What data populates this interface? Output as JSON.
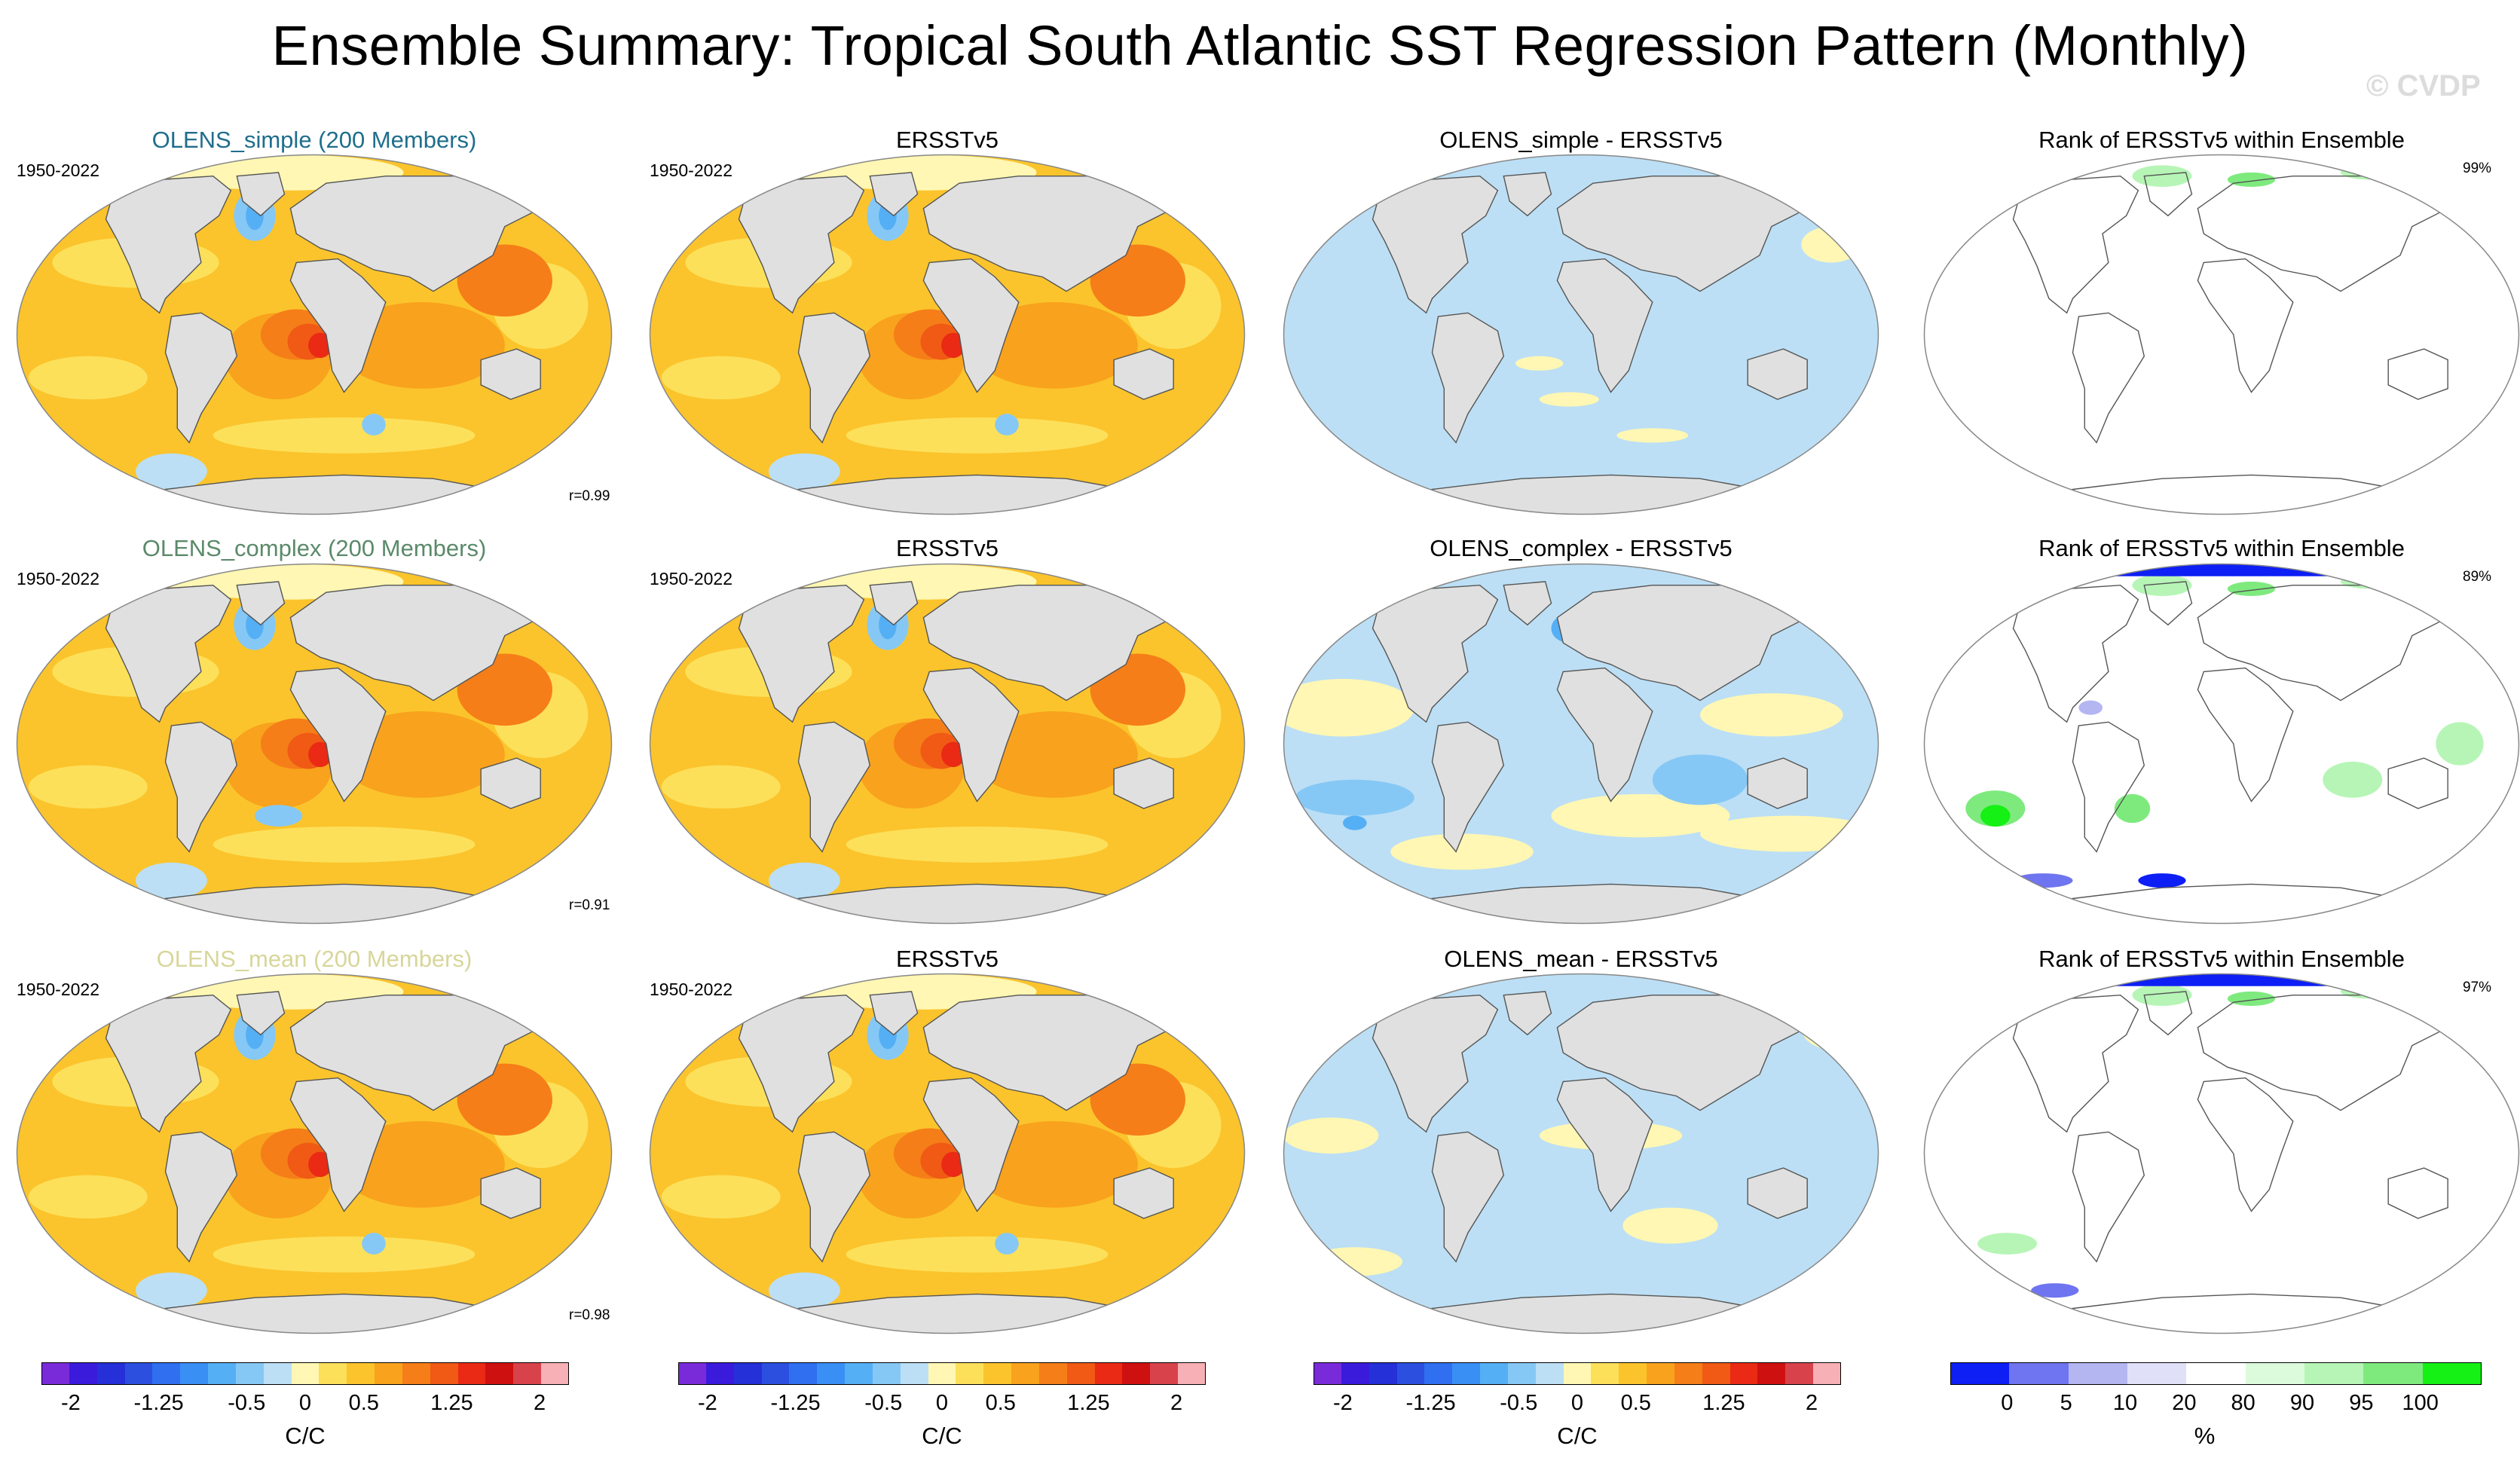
{
  "title": "Ensemble Summary: Tropical South Atlantic SST Regression Pattern (Monthly)",
  "copyright": "© CVDP",
  "period": "1950-2022",
  "rows": [
    {
      "ensemble_title": "OLENS_simple (200 Members)",
      "ensemble_title_color": "#1f6e8c",
      "obs_title": "ERSSTv5",
      "diff_title": "OLENS_simple - ERSSTv5",
      "rank_title": "Rank of ERSSTv5 within Ensemble",
      "pattern_corr": "r=0.99",
      "rank_percent": "99%"
    },
    {
      "ensemble_title": "OLENS_complex (200 Members)",
      "ensemble_title_color": "#5b8a6a",
      "obs_title": "ERSSTv5",
      "diff_title": "OLENS_complex - ERSSTv5",
      "rank_title": "Rank of ERSSTv5 within Ensemble",
      "pattern_corr": "r=0.91",
      "rank_percent": "89%"
    },
    {
      "ensemble_title": "OLENS_mean (200 Members)",
      "ensemble_title_color": "#d8d69a",
      "obs_title": "ERSSTv5",
      "diff_title": "OLENS_mean - ERSSTv5",
      "rank_title": "Rank of ERSSTv5 within Ensemble",
      "pattern_corr": "r=0.98",
      "rank_percent": "97%"
    }
  ],
  "chart_data": {
    "type": "heatmap",
    "projection": "Robinson (global maps)",
    "sst_colorbar": {
      "unit": "C/C",
      "tick_labels": [
        "-2",
        "-1.25",
        "-0.5",
        "0",
        "0.5",
        "1.25",
        "2"
      ],
      "tick_values": [
        -2,
        -1.25,
        -0.5,
        0,
        0.5,
        1.25,
        2
      ],
      "range": [
        -2.25,
        2.25
      ],
      "colors": [
        "#7a2bd9",
        "#3a1bdc",
        "#2530d8",
        "#2c4fe0",
        "#2f6ff0",
        "#3a8ff5",
        "#55aff5",
        "#86c8f5",
        "#bcdff5",
        "#fff7b3",
        "#fde05a",
        "#fbc42c",
        "#f9a21d",
        "#f57e18",
        "#f05a15",
        "#ea2a14",
        "#cf1010",
        "#d8424a",
        "#f7b0b5"
      ]
    },
    "rank_colorbar": {
      "unit": "%",
      "tick_labels": [
        "0",
        "5",
        "10",
        "20",
        "80",
        "90",
        "95",
        "100"
      ],
      "tick_values": [
        0,
        5,
        10,
        20,
        80,
        90,
        95,
        100
      ],
      "colors": [
        "#0d1ff5",
        "#6f74f0",
        "#b4b6f2",
        "#e0e1f8",
        "#ffffff",
        "#dcfadc",
        "#b6f5b6",
        "#7eea7e",
        "#15f015"
      ]
    },
    "panels": [
      {
        "row": 1,
        "col": 1,
        "type": "ensemble_mean",
        "max_anomaly_region": "Southeast Tropical Atlantic"
      },
      {
        "row": 1,
        "col": 2,
        "type": "observations"
      },
      {
        "row": 1,
        "col": 3,
        "type": "difference"
      },
      {
        "row": 1,
        "col": 4,
        "type": "rank"
      }
    ]
  }
}
